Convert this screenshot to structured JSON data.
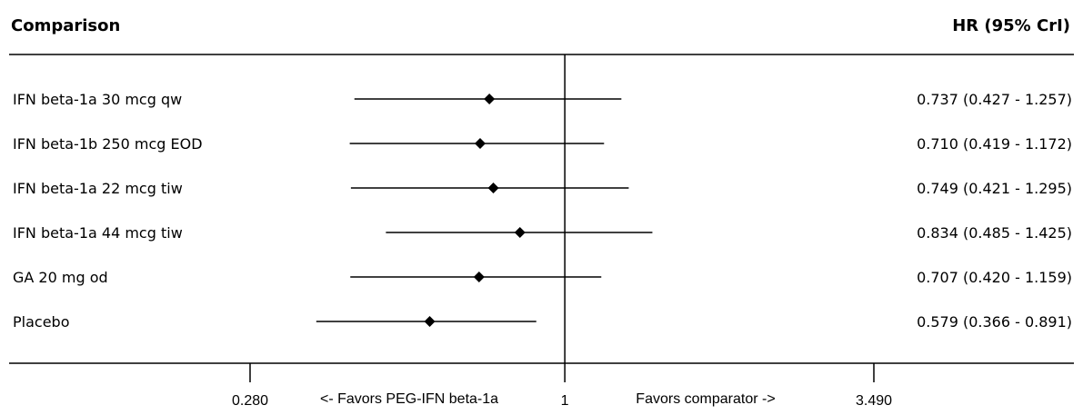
{
  "chart_data": {
    "type": "forest",
    "title": "",
    "header": {
      "left": "Comparison",
      "right": "HR (95% CrI)"
    },
    "xscale": "log",
    "xlim": [
      0.28,
      3.49
    ],
    "reference_line": 1,
    "ticks": [
      {
        "value": 0.28,
        "label": "0.280"
      },
      {
        "value": 1,
        "label": "1"
      },
      {
        "value": 3.49,
        "label": "3.490"
      }
    ],
    "favors_left": "<- Favors PEG-IFN beta-1a",
    "favors_right": "Favors comparator ->",
    "rows": [
      {
        "label": "IFN beta-1a 30 mcg qw",
        "hr": 0.737,
        "lo": 0.427,
        "hi": 1.257,
        "text": "0.737 (0.427 - 1.257)"
      },
      {
        "label": "IFN beta-1b 250 mcg EOD",
        "hr": 0.71,
        "lo": 0.419,
        "hi": 1.172,
        "text": "0.710 (0.419 - 1.172)"
      },
      {
        "label": "IFN beta-1a 22 mcg tiw",
        "hr": 0.749,
        "lo": 0.421,
        "hi": 1.295,
        "text": "0.749 (0.421 - 1.295)"
      },
      {
        "label": "IFN beta-1a 44 mcg tiw",
        "hr": 0.834,
        "lo": 0.485,
        "hi": 1.425,
        "text": "0.834 (0.485 - 1.425)"
      },
      {
        "label": "GA 20 mg od",
        "hr": 0.707,
        "lo": 0.42,
        "hi": 1.159,
        "text": "0.707 (0.420 - 1.159)"
      },
      {
        "label": "Placebo",
        "hr": 0.579,
        "lo": 0.366,
        "hi": 0.891,
        "text": "0.579 (0.366 - 0.891)"
      }
    ]
  }
}
